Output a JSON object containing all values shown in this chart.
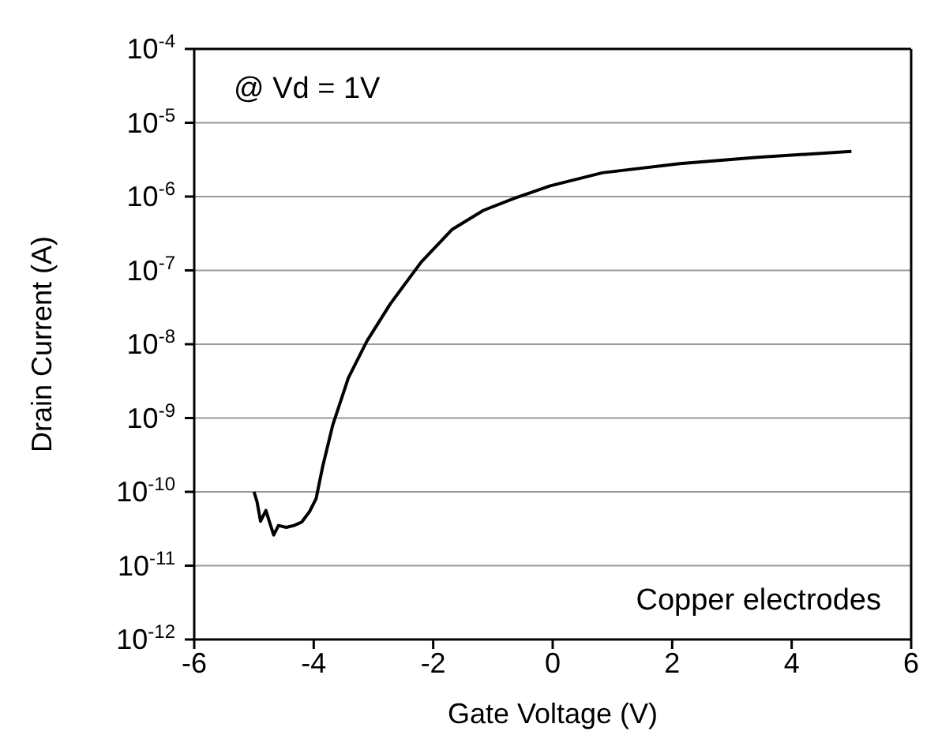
{
  "chart_data": {
    "type": "line",
    "xlabel": "Gate Voltage (V)",
    "ylabel": "Drain Current (A)",
    "log": "y",
    "grid": "y",
    "legend": false,
    "marker": "none",
    "line_style": "solid",
    "annotations": [
      "@ Vd = 1V",
      "Copper electrodes"
    ],
    "xlim": [
      -6,
      6
    ],
    "xticks": [
      -6,
      -4,
      -2,
      0,
      2,
      4,
      6
    ],
    "ylim": [
      1e-12,
      0.0001
    ],
    "yticks": [
      {
        "value": 1e-12,
        "label": "10$^{-12}$"
      },
      {
        "value": 1e-11,
        "label": "10$^{-11}$"
      },
      {
        "value": 1e-10,
        "label": "10$^{-10}$"
      },
      {
        "value": 1e-09,
        "label": "10$^{-9}$"
      },
      {
        "value": 1e-08,
        "label": "10$^{-8}$"
      },
      {
        "value": 1e-07,
        "label": "10$^{-7}$"
      },
      {
        "value": 1e-06,
        "label": "10$^{-6}$"
      },
      {
        "value": 1e-05,
        "label": "10$^{-5}$"
      },
      {
        "value": 0.0001,
        "label": "10$^{-4}$"
      }
    ],
    "x": [
      -5.0,
      -4.95,
      -4.89,
      -4.8,
      -4.74,
      -4.67,
      -4.59,
      -4.46,
      -4.33,
      -4.2,
      -4.07,
      -3.96,
      -3.85,
      -3.68,
      -3.42,
      -3.11,
      -2.72,
      -2.2,
      -1.68,
      -1.16,
      -0.64,
      -0.04,
      0.83,
      2.13,
      3.43,
      5.0
    ],
    "series": [
      {
        "color": "#000000",
        "values": [
          1e-10,
          7.4e-11,
          4e-11,
          5.6e-11,
          3.9e-11,
          2.6e-11,
          3.5e-11,
          3.3e-11,
          3.5e-11,
          3.9e-11,
          5.4e-11,
          8.1e-11,
          2.2e-10,
          8.1e-10,
          3.5e-09,
          1.1e-08,
          3.5e-08,
          1.3e-07,
          3.6e-07,
          6.5e-07,
          9.5e-07,
          1.4e-06,
          2.1e-06,
          2.8e-06,
          3.4e-06,
          4.1e-06
        ]
      }
    ]
  }
}
